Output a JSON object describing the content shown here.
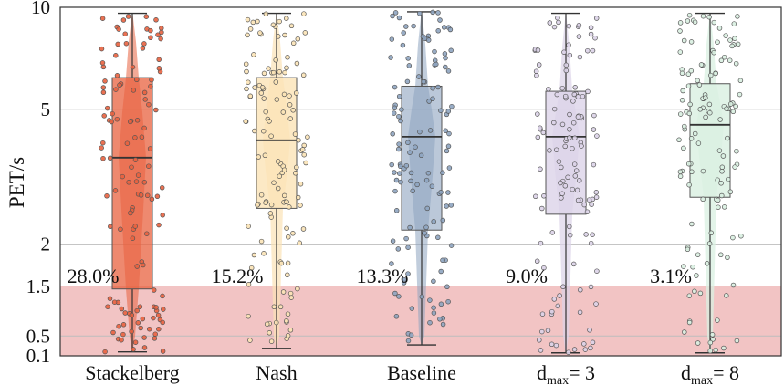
{
  "chart_data": {
    "type": "box-violin-jitter",
    "ylabel": "PET/s",
    "y_scale": "piecewise (compressed below 1.5)",
    "ylim": [
      0.1,
      10
    ],
    "yticks": [
      {
        "value": 0.1,
        "label": "0.1"
      },
      {
        "value": 0.5,
        "label": "0.5"
      },
      {
        "value": 1.5,
        "label": "1.5"
      },
      {
        "value": 2,
        "label": "2"
      },
      {
        "value": 5,
        "label": "5"
      },
      {
        "value": 10,
        "label": "10"
      }
    ],
    "gridlines_at": [
      0.5,
      2,
      5
    ],
    "danger_zone": {
      "from": 0.1,
      "to": 1.5,
      "color": "#f2c4c4"
    },
    "series": [
      {
        "name": "Stackelberg",
        "label_main": "Stackelberg",
        "label_sub": "",
        "label_tail": "",
        "color": "#e8623f",
        "box_alpha": 0.75,
        "violin_alpha": 0.55,
        "whisker_low": 0.18,
        "q1": 1.45,
        "median": 3.6,
        "q3": 6.2,
        "whisker_high": 9.6,
        "below_threshold_pct": "28.0%",
        "seed": 11
      },
      {
        "name": "Nash",
        "label_main": "Nash",
        "label_sub": "",
        "label_tail": "",
        "color": "#fbe3b6",
        "box_alpha": 0.8,
        "violin_alpha": 0.7,
        "whisker_low": 0.25,
        "q1": 2.55,
        "median": 4.05,
        "q3": 6.2,
        "whisker_high": 9.6,
        "below_threshold_pct": "15.2%",
        "seed": 23
      },
      {
        "name": "Baseline",
        "label_main": "Baseline",
        "label_sub": "",
        "label_tail": "",
        "color": "#8ea4c0",
        "box_alpha": 0.6,
        "violin_alpha": 0.55,
        "whisker_low": 0.32,
        "q1": 2.2,
        "median": 4.15,
        "q3": 5.85,
        "whisker_high": 9.7,
        "below_threshold_pct": "13.3%",
        "seed": 37
      },
      {
        "name": "dmax=3",
        "label_main": "d",
        "label_sub": "max",
        "label_tail": "= 3",
        "color": "#dcd3e8",
        "box_alpha": 0.8,
        "violin_alpha": 0.7,
        "whisker_low": 0.16,
        "q1": 2.45,
        "median": 4.15,
        "q3": 5.65,
        "whisker_high": 9.6,
        "below_threshold_pct": "9.0%",
        "seed": 51
      },
      {
        "name": "dmax=8",
        "label_main": "d",
        "label_sub": "max",
        "label_tail": "= 8",
        "color": "#d9f0e1",
        "box_alpha": 0.8,
        "violin_alpha": 0.75,
        "whisker_low": 0.16,
        "q1": 2.75,
        "median": 4.5,
        "q3": 5.95,
        "whisker_high": 9.6,
        "below_threshold_pct": "3.1%",
        "seed": 67
      }
    ]
  }
}
